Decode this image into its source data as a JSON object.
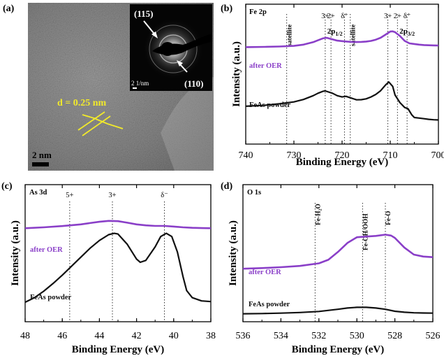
{
  "figure": {
    "panel_a": {
      "label": "(a)",
      "d_spacing_label": "d = 0.25 nm",
      "scalebar_label": "2 nm",
      "inset": {
        "ring1_label": "(115)",
        "ring2_label": "(110)",
        "scalebar_label": "2 1/nm"
      }
    }
  },
  "chart_data": [
    {
      "id": "b",
      "type": "line",
      "panel_label": "(b)",
      "element_label": "Fe 2p",
      "xlabel": "Binding Energy (eV)",
      "ylabel": "Intensity (a.u.)",
      "xlim": [
        740,
        700
      ],
      "x_reversed": true,
      "ylim": [
        0,
        1
      ],
      "xticks": [
        740,
        730,
        720,
        710,
        700
      ],
      "y_tick_labels": false,
      "series": [
        {
          "name": "after OER",
          "color": "#8a3fc8",
          "x": [
            740,
            736,
            733,
            730,
            728,
            726,
            725,
            724,
            723.2,
            722,
            721,
            720,
            719,
            718,
            717,
            716,
            715,
            714,
            713,
            712,
            711,
            710,
            709.5,
            709,
            708,
            707,
            706,
            705,
            704,
            703,
            702,
            701,
            700
          ],
          "y": [
            0.745,
            0.747,
            0.75,
            0.755,
            0.765,
            0.785,
            0.8,
            0.815,
            0.82,
            0.808,
            0.797,
            0.793,
            0.79,
            0.787,
            0.786,
            0.787,
            0.79,
            0.795,
            0.805,
            0.82,
            0.845,
            0.87,
            0.872,
            0.865,
            0.835,
            0.795,
            0.775,
            0.77,
            0.765,
            0.762,
            0.76,
            0.759,
            0.758
          ]
        },
        {
          "name": "FeAs powder",
          "color": "#111111",
          "x": [
            740,
            736,
            733,
            730,
            728,
            726,
            725,
            724,
            723.5,
            722,
            721,
            720,
            719.2,
            718,
            717,
            716,
            715,
            714,
            713,
            712,
            711,
            710.3,
            709.5,
            709,
            708,
            707,
            706.3,
            705.5,
            705,
            704,
            703,
            702,
            701,
            700
          ],
          "y": [
            0.27,
            0.278,
            0.29,
            0.305,
            0.325,
            0.355,
            0.375,
            0.39,
            0.393,
            0.375,
            0.355,
            0.345,
            0.35,
            0.335,
            0.322,
            0.323,
            0.33,
            0.345,
            0.365,
            0.395,
            0.44,
            0.465,
            0.43,
            0.36,
            0.3,
            0.26,
            0.25,
            0.2,
            0.18,
            0.175,
            0.17,
            0.165,
            0.162,
            0.16
          ]
        }
      ],
      "reference_lines": [
        {
          "x": 731.5,
          "label": "satellite"
        },
        {
          "x": 723.5,
          "label": "3+"
        },
        {
          "x": 722.3,
          "label": "2+"
        },
        {
          "x": 719.5,
          "label": "δ⁺"
        },
        {
          "x": 718.3,
          "label": "satellite"
        },
        {
          "x": 710.5,
          "label": "3+"
        },
        {
          "x": 708.5,
          "label": "2+"
        },
        {
          "x": 706.5,
          "label": "δ⁺"
        }
      ],
      "peak_labels": [
        {
          "x": 721.5,
          "main": "2p",
          "sub": "1/2"
        },
        {
          "x": 706.5,
          "main": "2p",
          "sub": "3/2"
        }
      ]
    },
    {
      "id": "c",
      "type": "line",
      "panel_label": "(c)",
      "element_label": "As 3d",
      "xlabel": "Binding Energy (eV)",
      "ylabel": "Intensity (a.u.)",
      "xlim": [
        48,
        38
      ],
      "x_reversed": true,
      "ylim": [
        0,
        1
      ],
      "xticks": [
        48,
        46,
        44,
        42,
        40,
        38
      ],
      "y_tick_labels": false,
      "series": [
        {
          "name": "after OER",
          "color": "#8a3fc8",
          "x": [
            48,
            47,
            46,
            45,
            44.5,
            44,
            43.5,
            43,
            42.5,
            42,
            41.5,
            41,
            40.5,
            40,
            39.5,
            39,
            38.5,
            38
          ],
          "y": [
            0.705,
            0.712,
            0.722,
            0.735,
            0.745,
            0.755,
            0.762,
            0.76,
            0.748,
            0.735,
            0.727,
            0.723,
            0.723,
            0.718,
            0.712,
            0.708,
            0.706,
            0.705
          ]
        },
        {
          "name": "FeAs powder",
          "color": "#111111",
          "x": [
            48,
            47.5,
            47,
            46.5,
            46,
            45.5,
            45,
            44.5,
            44,
            43.5,
            43.2,
            43,
            42.5,
            42,
            41.8,
            41.5,
            41,
            40.7,
            40.4,
            40.1,
            39.8,
            39.5,
            39.3,
            39,
            38.5,
            38
          ],
          "y": [
            0.13,
            0.165,
            0.215,
            0.275,
            0.34,
            0.41,
            0.48,
            0.55,
            0.61,
            0.655,
            0.665,
            0.66,
            0.58,
            0.465,
            0.44,
            0.455,
            0.56,
            0.64,
            0.665,
            0.64,
            0.52,
            0.33,
            0.22,
            0.165,
            0.14,
            0.135
          ]
        }
      ],
      "reference_lines": [
        {
          "x": 45.6,
          "label": "5+"
        },
        {
          "x": 43.3,
          "label": "3+"
        },
        {
          "x": 40.5,
          "label": "δ⁻"
        }
      ],
      "peak_labels": []
    },
    {
      "id": "d",
      "type": "line",
      "panel_label": "(d)",
      "element_label": "O 1s",
      "xlabel": "Binding Energy (eV)",
      "ylabel": "Intensity (a.u.)",
      "xlim": [
        536,
        526
      ],
      "x_reversed": true,
      "ylim": [
        0,
        1
      ],
      "xticks": [
        536,
        534,
        532,
        530,
        528,
        526
      ],
      "y_tick_labels": false,
      "series": [
        {
          "name": "after OER",
          "color": "#8a3fc8",
          "x": [
            536,
            535,
            534,
            533,
            532,
            531.5,
            531,
            530.5,
            530,
            529.5,
            529,
            528.5,
            528.2,
            528,
            527.5,
            527,
            526.5,
            526
          ],
          "y": [
            0.39,
            0.395,
            0.402,
            0.412,
            0.432,
            0.46,
            0.52,
            0.59,
            0.635,
            0.64,
            0.645,
            0.655,
            0.648,
            0.63,
            0.555,
            0.5,
            0.485,
            0.48
          ]
        },
        {
          "name": "FeAs powder",
          "color": "#111111",
          "x": [
            536,
            535,
            534,
            533,
            532,
            531,
            530.5,
            530,
            529.5,
            529,
            528.5,
            528,
            527.5,
            527,
            526.5,
            526
          ],
          "y": [
            0.04,
            0.042,
            0.045,
            0.05,
            0.058,
            0.075,
            0.085,
            0.09,
            0.09,
            0.085,
            0.075,
            0.06,
            0.052,
            0.048,
            0.046,
            0.045
          ]
        }
      ],
      "reference_lines": [
        {
          "x": 532.2,
          "label": "Fe-H₂O"
        },
        {
          "x": 529.7,
          "label": "Fe-OH/OOH"
        },
        {
          "x": 528.5,
          "label": "Fe-O"
        }
      ],
      "peak_labels": []
    }
  ]
}
